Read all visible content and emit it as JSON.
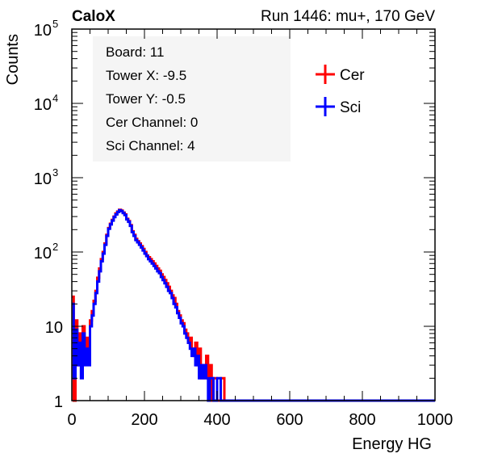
{
  "header": {
    "left": "CaloX",
    "right": "Run 1446: mu+, 170 GeV"
  },
  "info_box": {
    "lines": [
      "Board: 11",
      "Tower X: -9.5",
      "Tower Y: -0.5",
      "Cer Channel: 0",
      "Sci Channel: 4"
    ]
  },
  "colors": {
    "cer": "#ff0000",
    "sci": "#0000ff",
    "axis": "#000000",
    "box": "#f5f5f5"
  },
  "chart_data": {
    "type": "line",
    "xlabel": "Energy HG",
    "ylabel": "Counts",
    "xlim": [
      0,
      1000
    ],
    "ylim": [
      1,
      100000
    ],
    "yscale": "log",
    "x_ticks": [
      0,
      200,
      400,
      600,
      800,
      1000
    ],
    "y_ticks": [
      {
        "value": 1,
        "label": "1",
        "exp": ""
      },
      {
        "value": 10,
        "label": "10",
        "exp": ""
      },
      {
        "value": 100,
        "label": "10",
        "exp": "2"
      },
      {
        "value": 1000,
        "label": "10",
        "exp": "3"
      },
      {
        "value": 10000,
        "label": "10",
        "exp": "4"
      },
      {
        "value": 100000,
        "label": "10",
        "exp": "5"
      }
    ],
    "grid": false,
    "legend_position": "top-right",
    "series": [
      {
        "name": "Cer",
        "color": "#ff0000",
        "points": [
          [
            0,
            25
          ],
          [
            5,
            1
          ],
          [
            10,
            12
          ],
          [
            15,
            3
          ],
          [
            20,
            8
          ],
          [
            25,
            3
          ],
          [
            30,
            10
          ],
          [
            35,
            4
          ],
          [
            40,
            7
          ],
          [
            45,
            4
          ],
          [
            50,
            12
          ],
          [
            55,
            16
          ],
          [
            60,
            22
          ],
          [
            65,
            30
          ],
          [
            70,
            45
          ],
          [
            75,
            60
          ],
          [
            80,
            80
          ],
          [
            85,
            100
          ],
          [
            90,
            130
          ],
          [
            95,
            170
          ],
          [
            100,
            210
          ],
          [
            105,
            240
          ],
          [
            110,
            270
          ],
          [
            115,
            300
          ],
          [
            120,
            330
          ],
          [
            125,
            350
          ],
          [
            130,
            370
          ],
          [
            135,
            360
          ],
          [
            140,
            340
          ],
          [
            145,
            320
          ],
          [
            150,
            280
          ],
          [
            155,
            260
          ],
          [
            160,
            230
          ],
          [
            165,
            190
          ],
          [
            170,
            170
          ],
          [
            175,
            150
          ],
          [
            180,
            140
          ],
          [
            185,
            130
          ],
          [
            190,
            120
          ],
          [
            195,
            110
          ],
          [
            200,
            100
          ],
          [
            205,
            90
          ],
          [
            210,
            85
          ],
          [
            215,
            80
          ],
          [
            220,
            75
          ],
          [
            225,
            70
          ],
          [
            230,
            65
          ],
          [
            235,
            60
          ],
          [
            240,
            56
          ],
          [
            245,
            50
          ],
          [
            250,
            46
          ],
          [
            255,
            42
          ],
          [
            260,
            38
          ],
          [
            265,
            34
          ],
          [
            270,
            30
          ],
          [
            275,
            26
          ],
          [
            280,
            24
          ],
          [
            285,
            20
          ],
          [
            290,
            16
          ],
          [
            295,
            14
          ],
          [
            300,
            12
          ],
          [
            305,
            11
          ],
          [
            310,
            9
          ],
          [
            315,
            8
          ],
          [
            320,
            6
          ],
          [
            325,
            7
          ],
          [
            330,
            5
          ],
          [
            335,
            4
          ],
          [
            340,
            6
          ],
          [
            345,
            3
          ],
          [
            350,
            5
          ],
          [
            355,
            2
          ],
          [
            360,
            3
          ],
          [
            365,
            2
          ],
          [
            370,
            4
          ],
          [
            375,
            2
          ],
          [
            380,
            3
          ],
          [
            385,
            1
          ],
          [
            390,
            2
          ],
          [
            400,
            1
          ],
          [
            410,
            2
          ],
          [
            420,
            1
          ],
          [
            440,
            1
          ],
          [
            460,
            1
          ],
          [
            500,
            1
          ],
          [
            520,
            1
          ],
          [
            560,
            1
          ],
          [
            590,
            1
          ],
          [
            600,
            1
          ],
          [
            1000,
            1
          ]
        ]
      },
      {
        "name": "Sci",
        "color": "#0000ff",
        "points": [
          [
            0,
            20
          ],
          [
            5,
            2
          ],
          [
            10,
            9
          ],
          [
            15,
            3
          ],
          [
            20,
            6
          ],
          [
            25,
            2
          ],
          [
            30,
            8
          ],
          [
            35,
            3
          ],
          [
            40,
            5
          ],
          [
            45,
            3
          ],
          [
            50,
            10
          ],
          [
            55,
            14
          ],
          [
            60,
            20
          ],
          [
            65,
            28
          ],
          [
            70,
            40
          ],
          [
            75,
            55
          ],
          [
            80,
            75
          ],
          [
            85,
            95
          ],
          [
            90,
            125
          ],
          [
            95,
            165
          ],
          [
            100,
            205
          ],
          [
            105,
            235
          ],
          [
            110,
            265
          ],
          [
            115,
            295
          ],
          [
            120,
            320
          ],
          [
            125,
            345
          ],
          [
            130,
            365
          ],
          [
            135,
            355
          ],
          [
            140,
            335
          ],
          [
            145,
            315
          ],
          [
            150,
            275
          ],
          [
            155,
            255
          ],
          [
            160,
            225
          ],
          [
            165,
            185
          ],
          [
            170,
            165
          ],
          [
            175,
            145
          ],
          [
            180,
            135
          ],
          [
            185,
            125
          ],
          [
            190,
            115
          ],
          [
            195,
            105
          ],
          [
            200,
            95
          ],
          [
            205,
            88
          ],
          [
            210,
            80
          ],
          [
            215,
            75
          ],
          [
            220,
            70
          ],
          [
            225,
            65
          ],
          [
            230,
            60
          ],
          [
            235,
            55
          ],
          [
            240,
            52
          ],
          [
            245,
            46
          ],
          [
            250,
            42
          ],
          [
            255,
            38
          ],
          [
            260,
            34
          ],
          [
            265,
            30
          ],
          [
            270,
            28
          ],
          [
            275,
            24
          ],
          [
            280,
            20
          ],
          [
            285,
            18
          ],
          [
            290,
            15
          ],
          [
            295,
            13
          ],
          [
            300,
            11
          ],
          [
            305,
            10
          ],
          [
            310,
            8
          ],
          [
            315,
            7
          ],
          [
            320,
            6
          ],
          [
            325,
            5
          ],
          [
            330,
            4
          ],
          [
            335,
            5
          ],
          [
            340,
            3
          ],
          [
            345,
            4
          ],
          [
            350,
            2
          ],
          [
            355,
            3
          ],
          [
            360,
            2
          ],
          [
            365,
            3
          ],
          [
            370,
            2
          ],
          [
            375,
            1
          ],
          [
            380,
            2
          ],
          [
            390,
            1
          ],
          [
            400,
            2
          ],
          [
            410,
            1
          ],
          [
            430,
            1
          ],
          [
            450,
            1
          ],
          [
            500,
            1
          ],
          [
            550,
            1
          ],
          [
            580,
            1
          ],
          [
            1000,
            1
          ]
        ]
      }
    ]
  }
}
